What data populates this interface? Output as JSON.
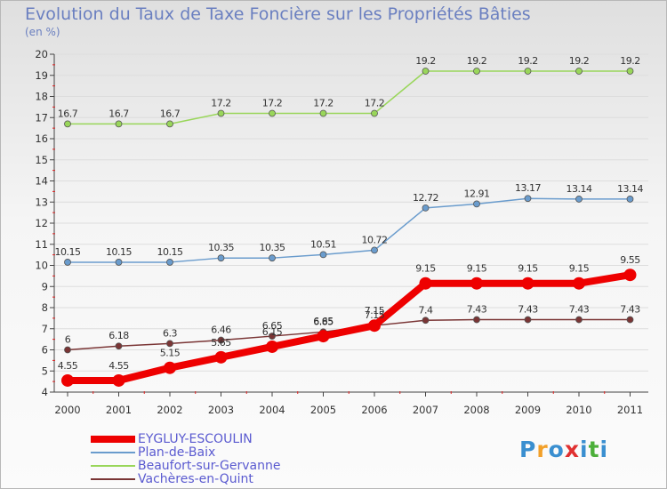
{
  "title": "Evolution du Taux de Taxe Foncière sur les Propriétés Bâties",
  "subtitle": "(en %)",
  "chart_data": {
    "type": "line",
    "title": "Evolution du Taux de Taxe Foncière sur les Propriétés Bâties",
    "ylabel": "(en %)",
    "xlabel": "",
    "ylim": [
      4,
      20
    ],
    "categories": [
      "2000",
      "2001",
      "2002",
      "2003",
      "2004",
      "2005",
      "2006",
      "2007",
      "2008",
      "2009",
      "2010",
      "2011"
    ],
    "yticks": [
      "4",
      "5",
      "6",
      "7",
      "8",
      "9",
      "10",
      "11",
      "12",
      "13",
      "14",
      "15",
      "16",
      "17",
      "18",
      "19",
      "20"
    ],
    "series": [
      {
        "name": "EYGLUY-ESCOULIN",
        "color": "#ee0000",
        "values": [
          4.55,
          4.55,
          5.15,
          5.65,
          6.15,
          6.65,
          7.15,
          9.15,
          9.15,
          9.15,
          9.15,
          9.55
        ],
        "labels": [
          "4.55",
          "4.55",
          "5.15",
          "5.65",
          "6.15",
          "6.65",
          "7.15",
          "9.15",
          "9.15",
          "9.15",
          "9.15",
          "9.55"
        ]
      },
      {
        "name": "Plan-de-Baix",
        "color": "#6a9ccd",
        "values": [
          10.15,
          10.15,
          10.15,
          10.35,
          10.35,
          10.51,
          10.72,
          12.72,
          12.91,
          13.17,
          13.14,
          13.14
        ],
        "labels": [
          "10.15",
          "10.15",
          "10.15",
          "10.35",
          "10.35",
          "10.51",
          "10.72",
          "12.72",
          "12.91",
          "13.17",
          "13.14",
          "13.14"
        ]
      },
      {
        "name": "Beaufort-sur-Gervanne",
        "color": "#99d65a",
        "values": [
          16.7,
          16.7,
          16.7,
          17.2,
          17.2,
          17.2,
          17.2,
          19.2,
          19.2,
          19.2,
          19.2,
          19.2
        ],
        "labels": [
          "16.7",
          "16.7",
          "16.7",
          "17.2",
          "17.2",
          "17.2",
          "17.2",
          "19.2",
          "19.2",
          "19.2",
          "19.2",
          "19.2"
        ]
      },
      {
        "name": "Vachères-en-Quint",
        "color": "#7a3535",
        "values": [
          6,
          6.18,
          6.3,
          6.46,
          6.65,
          6.85,
          7.15,
          7.4,
          7.43,
          7.43,
          7.43,
          7.43
        ],
        "labels": [
          "6",
          "6.18",
          "6.3",
          "6.46",
          "6.65",
          "6.85",
          "7.15",
          "7.4",
          "7.43",
          "7.43",
          "7.43",
          "7.43"
        ]
      }
    ]
  },
  "logo": {
    "text": "Proxiti",
    "letters": [
      "P",
      "r",
      "o",
      "x",
      "i",
      "t",
      "i"
    ],
    "colors": [
      "#3a8fd0",
      "#f2a02a",
      "#3a8fd0",
      "#e03030",
      "#3a8fd0",
      "#4caf3a",
      "#3a8fd0"
    ]
  }
}
